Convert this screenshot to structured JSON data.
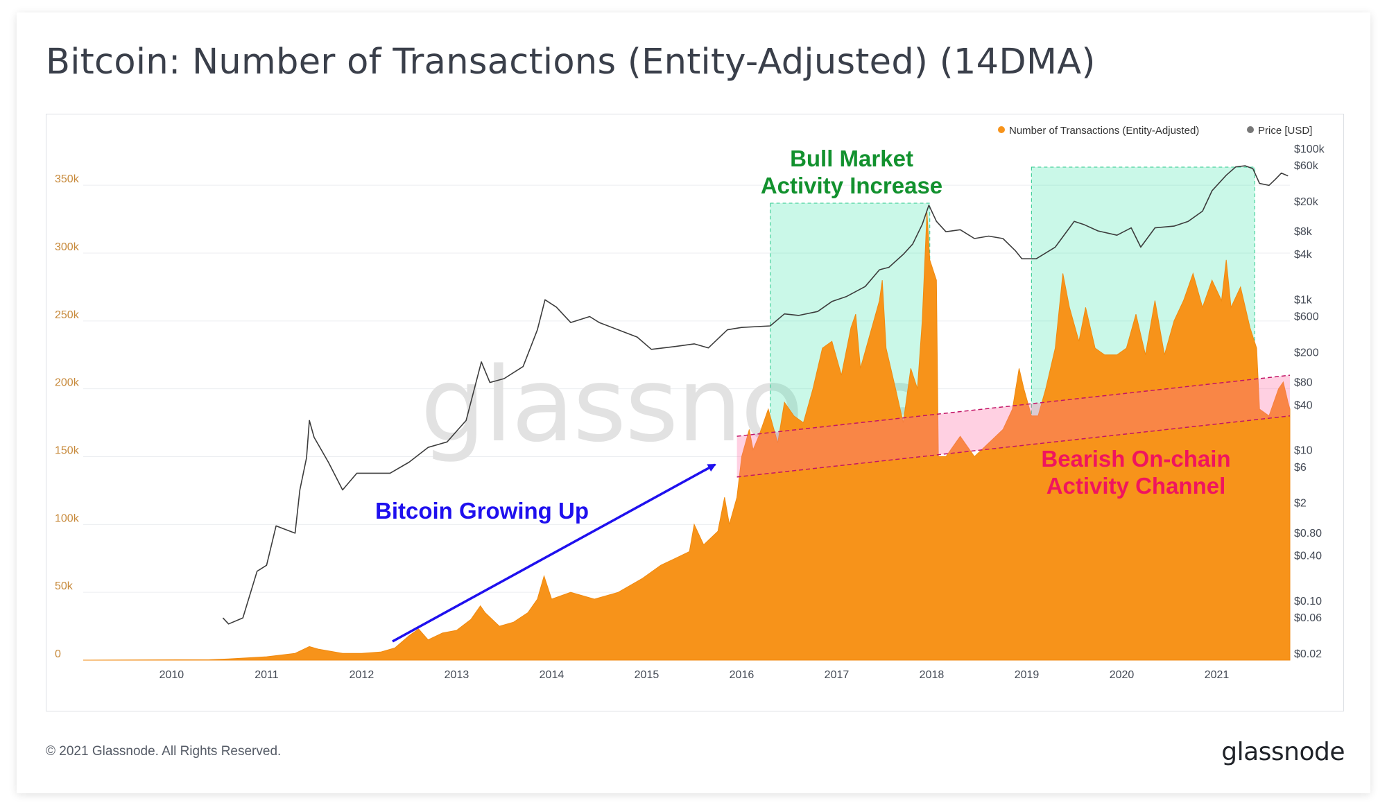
{
  "title": "Bitcoin: Number of Transactions (Entity-Adjusted) (14DMA)",
  "footer": "© 2021 Glassnode. All Rights Reserved.",
  "brand": "glassnode",
  "watermark": "glassnode",
  "colors": {
    "area": "#f7931a",
    "price": "#3c3c3c",
    "bull": "#22e3a0",
    "bear": "#ff6ea6",
    "arrow": "#1f10ee",
    "bull_text": "#12912e",
    "bear_text": "#f0155e",
    "growth_text": "#1f10ee"
  },
  "legend": [
    {
      "label": "Number of Transactions (Entity-Adjusted)",
      "color": "#f7931a"
    },
    {
      "label": "Price [USD]",
      "color": "#777777"
    }
  ],
  "annotations": {
    "bull_line1": "Bull Market",
    "bull_line2": "Activity Increase",
    "bear_line1": "Bearish On-chain",
    "bear_line2": "Activity Channel",
    "growth": "Bitcoin Growing Up"
  },
  "chart_data": {
    "type": "area",
    "title": "Bitcoin: Number of Transactions (Entity-Adjusted) (14DMA)",
    "xlim": [
      2009.07,
      2021.77
    ],
    "x_ticks": [
      "2010",
      "2011",
      "2012",
      "2013",
      "2014",
      "2015",
      "2016",
      "2017",
      "2018",
      "2019",
      "2020",
      "2021"
    ],
    "y_left": {
      "label": "Number of Transactions (Entity-Adjusted)",
      "ylim": [
        0,
        392000
      ],
      "ticks": [
        "0",
        "50k",
        "100k",
        "150k",
        "200k",
        "250k",
        "300k",
        "350k"
      ]
    },
    "y_right": {
      "label": "Price [USD]",
      "scale": "log",
      "ylim": [
        0.02,
        100000
      ],
      "ticks": [
        "$0.02",
        "$0.06",
        "$0.10",
        "$0.40",
        "$0.80",
        "$2",
        "$6",
        "$10",
        "$40",
        "$80",
        "$200",
        "$600",
        "$1k",
        "$4k",
        "$8k",
        "$20k",
        "$60k",
        "$100k"
      ]
    },
    "series": [
      {
        "name": "Number of Transactions (Entity-Adjusted)",
        "axis": "left",
        "points": [
          [
            2009.07,
            0
          ],
          [
            2010.4,
            300
          ],
          [
            2010.6,
            900
          ],
          [
            2011.0,
            2500
          ],
          [
            2011.3,
            5000
          ],
          [
            2011.45,
            10000
          ],
          [
            2011.55,
            8000
          ],
          [
            2011.8,
            5000
          ],
          [
            2012.0,
            5000
          ],
          [
            2012.2,
            6000
          ],
          [
            2012.35,
            9000
          ],
          [
            2012.5,
            18000
          ],
          [
            2012.6,
            23000
          ],
          [
            2012.7,
            15000
          ],
          [
            2012.85,
            20000
          ],
          [
            2013.0,
            22000
          ],
          [
            2013.15,
            30000
          ],
          [
            2013.25,
            40000
          ],
          [
            2013.3,
            35000
          ],
          [
            2013.45,
            25000
          ],
          [
            2013.6,
            28000
          ],
          [
            2013.75,
            35000
          ],
          [
            2013.85,
            45000
          ],
          [
            2013.92,
            62000
          ],
          [
            2014.0,
            45000
          ],
          [
            2014.2,
            50000
          ],
          [
            2014.45,
            45000
          ],
          [
            2014.7,
            50000
          ],
          [
            2014.95,
            60000
          ],
          [
            2015.15,
            70000
          ],
          [
            2015.3,
            75000
          ],
          [
            2015.45,
            80000
          ],
          [
            2015.5,
            100000
          ],
          [
            2015.6,
            85000
          ],
          [
            2015.75,
            95000
          ],
          [
            2015.82,
            120000
          ],
          [
            2015.87,
            100000
          ],
          [
            2015.95,
            120000
          ],
          [
            2016.0,
            150000
          ],
          [
            2016.08,
            170000
          ],
          [
            2016.12,
            155000
          ],
          [
            2016.18,
            165000
          ],
          [
            2016.28,
            185000
          ],
          [
            2016.38,
            160000
          ],
          [
            2016.45,
            190000
          ],
          [
            2016.55,
            180000
          ],
          [
            2016.65,
            175000
          ],
          [
            2016.75,
            200000
          ],
          [
            2016.85,
            230000
          ],
          [
            2016.95,
            235000
          ],
          [
            2017.05,
            210000
          ],
          [
            2017.15,
            245000
          ],
          [
            2017.2,
            255000
          ],
          [
            2017.25,
            215000
          ],
          [
            2017.35,
            240000
          ],
          [
            2017.45,
            265000
          ],
          [
            2017.48,
            280000
          ],
          [
            2017.52,
            230000
          ],
          [
            2017.62,
            200000
          ],
          [
            2017.7,
            175000
          ],
          [
            2017.78,
            215000
          ],
          [
            2017.85,
            200000
          ],
          [
            2017.9,
            250000
          ],
          [
            2017.95,
            330000
          ],
          [
            2017.98,
            295000
          ],
          [
            2018.05,
            280000
          ],
          [
            2018.07,
            150000
          ],
          [
            2018.15,
            150000
          ],
          [
            2018.3,
            165000
          ],
          [
            2018.45,
            150000
          ],
          [
            2018.6,
            160000
          ],
          [
            2018.75,
            170000
          ],
          [
            2018.85,
            185000
          ],
          [
            2018.92,
            215000
          ],
          [
            2018.97,
            200000
          ],
          [
            2019.05,
            180000
          ],
          [
            2019.12,
            180000
          ],
          [
            2019.2,
            200000
          ],
          [
            2019.3,
            230000
          ],
          [
            2019.38,
            285000
          ],
          [
            2019.45,
            260000
          ],
          [
            2019.55,
            235000
          ],
          [
            2019.62,
            260000
          ],
          [
            2019.72,
            230000
          ],
          [
            2019.82,
            225000
          ],
          [
            2019.95,
            225000
          ],
          [
            2020.05,
            230000
          ],
          [
            2020.15,
            255000
          ],
          [
            2020.25,
            225000
          ],
          [
            2020.35,
            265000
          ],
          [
            2020.45,
            225000
          ],
          [
            2020.55,
            250000
          ],
          [
            2020.65,
            265000
          ],
          [
            2020.75,
            285000
          ],
          [
            2020.85,
            260000
          ],
          [
            2020.95,
            280000
          ],
          [
            2021.05,
            265000
          ],
          [
            2021.1,
            295000
          ],
          [
            2021.15,
            260000
          ],
          [
            2021.25,
            275000
          ],
          [
            2021.35,
            245000
          ],
          [
            2021.42,
            230000
          ],
          [
            2021.45,
            185000
          ],
          [
            2021.55,
            180000
          ],
          [
            2021.65,
            200000
          ],
          [
            2021.7,
            205000
          ],
          [
            2021.75,
            190000
          ],
          [
            2021.77,
            185000
          ]
        ]
      },
      {
        "name": "Price [USD]",
        "axis": "right",
        "points": [
          [
            2010.54,
            0.06
          ],
          [
            2010.6,
            0.05
          ],
          [
            2010.75,
            0.06
          ],
          [
            2010.9,
            0.25
          ],
          [
            2011.0,
            0.3
          ],
          [
            2011.1,
            1.0
          ],
          [
            2011.3,
            0.8
          ],
          [
            2011.35,
            3
          ],
          [
            2011.42,
            8
          ],
          [
            2011.45,
            25
          ],
          [
            2011.5,
            15
          ],
          [
            2011.65,
            7
          ],
          [
            2011.8,
            3
          ],
          [
            2011.95,
            5
          ],
          [
            2012.1,
            5
          ],
          [
            2012.3,
            5
          ],
          [
            2012.5,
            7
          ],
          [
            2012.7,
            11
          ],
          [
            2012.9,
            13
          ],
          [
            2013.1,
            25
          ],
          [
            2013.26,
            150
          ],
          [
            2013.35,
            80
          ],
          [
            2013.5,
            90
          ],
          [
            2013.7,
            130
          ],
          [
            2013.85,
            400
          ],
          [
            2013.93,
            1000
          ],
          [
            2014.05,
            800
          ],
          [
            2014.2,
            500
          ],
          [
            2014.4,
            600
          ],
          [
            2014.5,
            500
          ],
          [
            2014.7,
            400
          ],
          [
            2014.9,
            320
          ],
          [
            2015.05,
            220
          ],
          [
            2015.3,
            240
          ],
          [
            2015.5,
            260
          ],
          [
            2015.65,
            230
          ],
          [
            2015.85,
            400
          ],
          [
            2016.0,
            430
          ],
          [
            2016.3,
            450
          ],
          [
            2016.45,
            650
          ],
          [
            2016.6,
            620
          ],
          [
            2016.8,
            700
          ],
          [
            2016.95,
            950
          ],
          [
            2017.1,
            1100
          ],
          [
            2017.3,
            1500
          ],
          [
            2017.45,
            2500
          ],
          [
            2017.55,
            2700
          ],
          [
            2017.7,
            4000
          ],
          [
            2017.8,
            5500
          ],
          [
            2017.9,
            10000
          ],
          [
            2017.97,
            18000
          ],
          [
            2018.05,
            11000
          ],
          [
            2018.15,
            8000
          ],
          [
            2018.3,
            8500
          ],
          [
            2018.45,
            6500
          ],
          [
            2018.6,
            7000
          ],
          [
            2018.75,
            6500
          ],
          [
            2018.88,
            4500
          ],
          [
            2018.95,
            3500
          ],
          [
            2019.1,
            3500
          ],
          [
            2019.3,
            5000
          ],
          [
            2019.45,
            9000
          ],
          [
            2019.5,
            11000
          ],
          [
            2019.6,
            10000
          ],
          [
            2019.75,
            8200
          ],
          [
            2019.95,
            7200
          ],
          [
            2020.1,
            9000
          ],
          [
            2020.2,
            5000
          ],
          [
            2020.35,
            9000
          ],
          [
            2020.55,
            9500
          ],
          [
            2020.7,
            11000
          ],
          [
            2020.85,
            15000
          ],
          [
            2020.95,
            28000
          ],
          [
            2021.1,
            45000
          ],
          [
            2021.2,
            58000
          ],
          [
            2021.3,
            60000
          ],
          [
            2021.38,
            55000
          ],
          [
            2021.45,
            35000
          ],
          [
            2021.55,
            33000
          ],
          [
            2021.62,
            40000
          ],
          [
            2021.68,
            48000
          ],
          [
            2021.75,
            44000
          ]
        ]
      }
    ],
    "bull_zones": [
      [
        2016.3,
        2017.98
      ],
      [
        2019.05,
        2021.4
      ]
    ],
    "bear_channel": {
      "x": [
        2015.95,
        2021.77
      ],
      "top": [
        165000,
        210000
      ],
      "bottom": [
        135000,
        180000
      ]
    }
  }
}
